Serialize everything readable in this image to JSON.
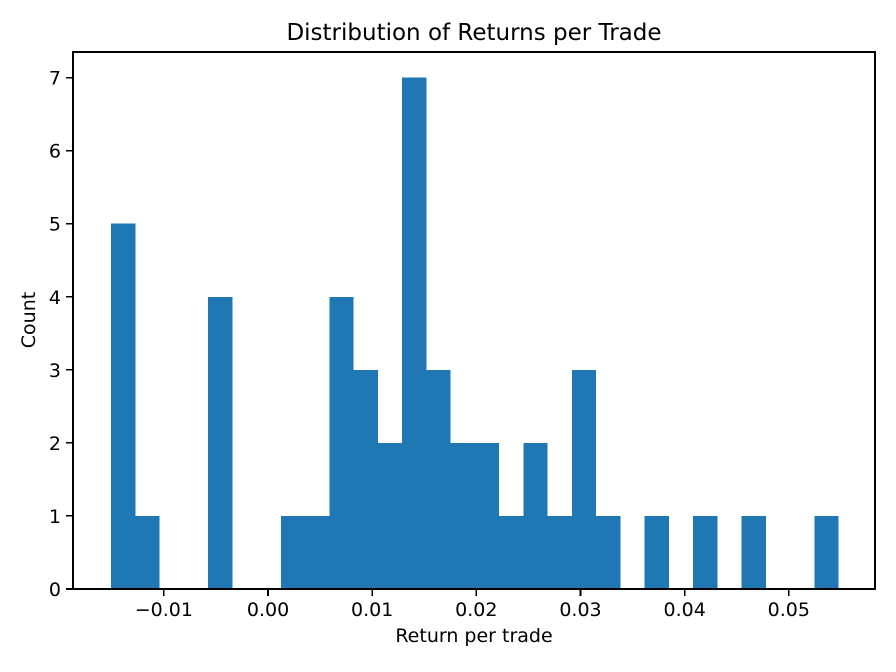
{
  "chart_data": {
    "type": "bar",
    "subtype": "histogram",
    "title": "Distribution of Returns per Trade",
    "xlabel": "Return per trade",
    "ylabel": "Count",
    "bar_color": "#1f77b4",
    "axis_color": "#000000",
    "background_color": "#ffffff",
    "grid": false,
    "legend": null,
    "n_bins": 30,
    "bin_start": -0.01506,
    "bin_width": 0.002328,
    "counts": [
      5,
      1,
      0,
      0,
      4,
      0,
      0,
      1,
      1,
      4,
      3,
      2,
      7,
      3,
      2,
      2,
      1,
      2,
      1,
      3,
      1,
      0,
      1,
      0,
      1,
      0,
      1,
      0,
      0,
      1
    ],
    "total_count": 47,
    "xlim": [
      -0.018725,
      0.058275
    ],
    "ylim": [
      0,
      7.35
    ],
    "x_ticks": {
      "values": [
        -0.01,
        0.0,
        0.01,
        0.02,
        0.03,
        0.04,
        0.05
      ],
      "labels": [
        "−0.01",
        "0.00",
        "0.01",
        "0.02",
        "0.03",
        "0.04",
        "0.05"
      ]
    },
    "y_ticks": {
      "values": [
        0,
        1,
        2,
        3,
        4,
        5,
        6,
        7
      ],
      "labels": [
        "0",
        "1",
        "2",
        "3",
        "4",
        "5",
        "6",
        "7"
      ]
    }
  }
}
